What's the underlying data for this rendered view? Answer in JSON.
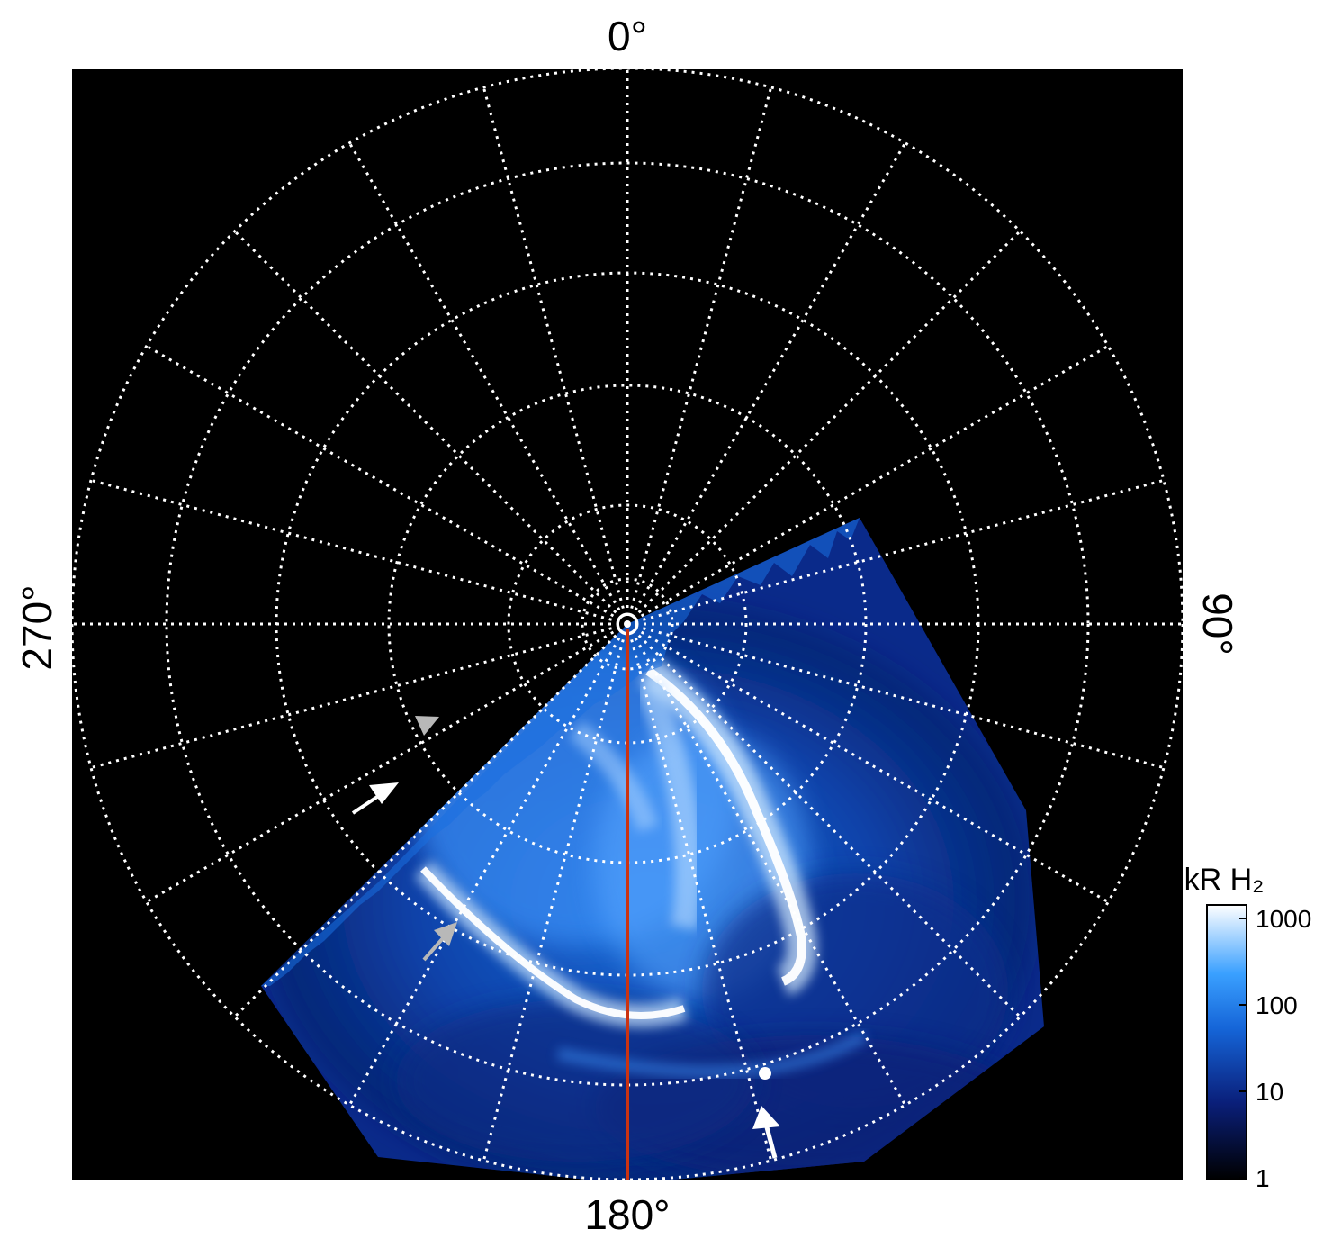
{
  "image": {
    "description_labels": {
      "top": "0°",
      "bottom": "180°",
      "left": "270°",
      "right": "90°"
    },
    "colorbar": {
      "unit": "kR H₂",
      "ticks": [
        "1000",
        "100",
        "10",
        "1"
      ],
      "scale": "log"
    },
    "colors": {
      "background": "#000000",
      "grid": "#ffffff",
      "meridian_line": "#cc3311",
      "aurora_low": "#06124a",
      "aurora_mid": "#1f7fe8",
      "aurora_high": "#f4fbff"
    },
    "grid": {
      "meridian_step_deg": 15,
      "circles": 6
    }
  }
}
